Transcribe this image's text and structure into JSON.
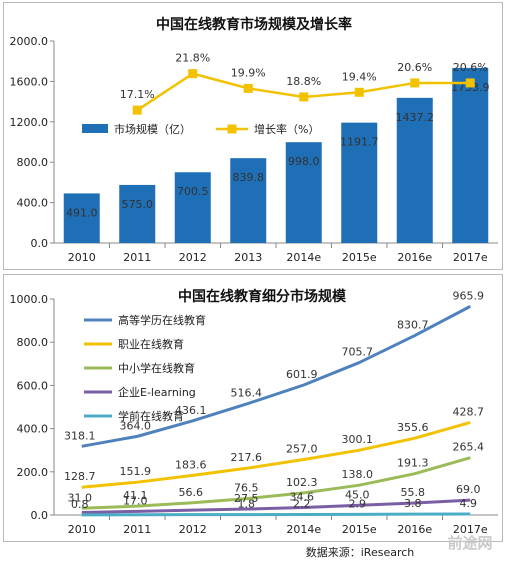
{
  "chart_data": [
    {
      "type": "bar",
      "title": "中国在线教育市场规模及增长率",
      "categories": [
        "2010",
        "2011",
        "2012",
        "2013",
        "2014e",
        "2015e",
        "2016e",
        "2017e"
      ],
      "series": [
        {
          "name": "市场规模（亿）",
          "type": "bar",
          "values": [
            491.0,
            575.0,
            700.5,
            839.8,
            998.0,
            1191.7,
            1437.2,
            1733.9
          ],
          "labels": [
            "491.0",
            "575.0",
            "700.5",
            "839.8",
            "998.0",
            "1191.7",
            "1437.2",
            "1733.9"
          ],
          "color": "#1f6fb6"
        },
        {
          "name": "增长率（%）",
          "type": "line",
          "values": [
            null,
            17.1,
            21.8,
            19.9,
            18.8,
            19.4,
            20.6,
            20.6
          ],
          "labels": [
            "",
            "17.1%",
            "21.8%",
            "19.9%",
            "18.8%",
            "19.4%",
            "20.6%",
            "20.6%"
          ],
          "color": "#f2c200"
        }
      ],
      "y_ticks": [
        "0.0",
        "400.0",
        "800.0",
        "1200.0",
        "1600.0",
        "2000.0"
      ],
      "ylim": [
        0,
        2000
      ],
      "rate_scale": [
        0,
        26
      ],
      "legend_position": "middle-left"
    },
    {
      "type": "line",
      "title": "中国在线教育细分市场规模",
      "categories": [
        "2010",
        "2011",
        "2012",
        "2013",
        "2014e",
        "2015e",
        "2016e",
        "2017e"
      ],
      "series": [
        {
          "name": "高等学历在线教育",
          "color": "#4e81bd",
          "values": [
            318.1,
            364.0,
            436.1,
            516.4,
            601.9,
            705.7,
            830.7,
            965.9
          ],
          "labels": [
            "318.1",
            "364.0",
            "436.1",
            "516.4",
            "601.9",
            "705.7",
            "830.7",
            "965.9"
          ]
        },
        {
          "name": "职业在线教育",
          "color": "#f2c200",
          "values": [
            128.7,
            151.9,
            183.6,
            217.6,
            257.0,
            300.1,
            355.6,
            428.7
          ],
          "labels": [
            "128.7",
            "151.9",
            "183.6",
            "217.6",
            "257.0",
            "300.1",
            "355.6",
            "428.7"
          ]
        },
        {
          "name": "中小学在线教育",
          "color": "#9bbb59",
          "values": [
            31.0,
            41.1,
            56.6,
            76.5,
            102.3,
            138.0,
            191.3,
            265.4
          ],
          "labels": [
            "31.0",
            "41.1",
            "56.6",
            "76.5",
            "102.3",
            "138.0",
            "191.3",
            "265.4"
          ]
        },
        {
          "name": "企业E-learning",
          "color": "#7b5fa6",
          "values": [
            11.6,
            17.0,
            22.6,
            27.5,
            34.6,
            45.0,
            55.8,
            69.0
          ],
          "labels": [
            "",
            "17.0",
            "",
            "27.5",
            "34.6",
            "45.0",
            "55.8",
            "69.0"
          ]
        },
        {
          "name": "学前在线教育",
          "color": "#4bacc6",
          "values": [
            0.8,
            1.2,
            1.8,
            1.8,
            2.2,
            2.9,
            3.8,
            4.9
          ],
          "labels": [
            "0.8",
            "",
            "",
            "1.8",
            "2.2",
            "2.9",
            "3.8",
            "4.9"
          ]
        }
      ],
      "y_ticks": [
        "0.0",
        "200.0",
        "400.0",
        "600.0",
        "800.0",
        "1000.0"
      ],
      "ylim": [
        0,
        1000
      ],
      "legend_position": "top-left"
    }
  ],
  "source_text": "数据来源：iResearch",
  "watermark_text": "前途网"
}
